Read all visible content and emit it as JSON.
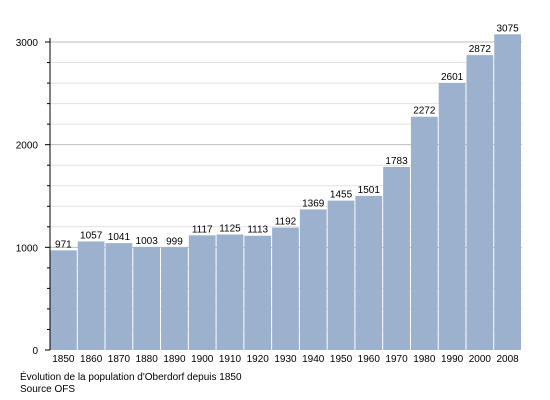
{
  "chart_data": {
    "type": "bar",
    "title": "",
    "xlabel": "",
    "ylabel": "",
    "categories": [
      "1850",
      "1860",
      "1870",
      "1880",
      "1890",
      "1900",
      "1910",
      "1920",
      "1930",
      "1940",
      "1950",
      "1960",
      "1970",
      "1980",
      "1990",
      "2000",
      "2008"
    ],
    "values": [
      971,
      1057,
      1041,
      1003,
      999,
      1117,
      1125,
      1113,
      1192,
      1369,
      1455,
      1501,
      1783,
      2272,
      2601,
      2872,
      3075
    ],
    "ylim": [
      0,
      3000
    ],
    "yticks": [
      0,
      1000,
      2000,
      3000
    ],
    "bar_color": "#9bb1cd",
    "grid": true,
    "data_labels": true
  },
  "caption": {
    "line1": "Évolution de la population d'Oberdorf depuis 1850",
    "line2": "Source OFS"
  }
}
